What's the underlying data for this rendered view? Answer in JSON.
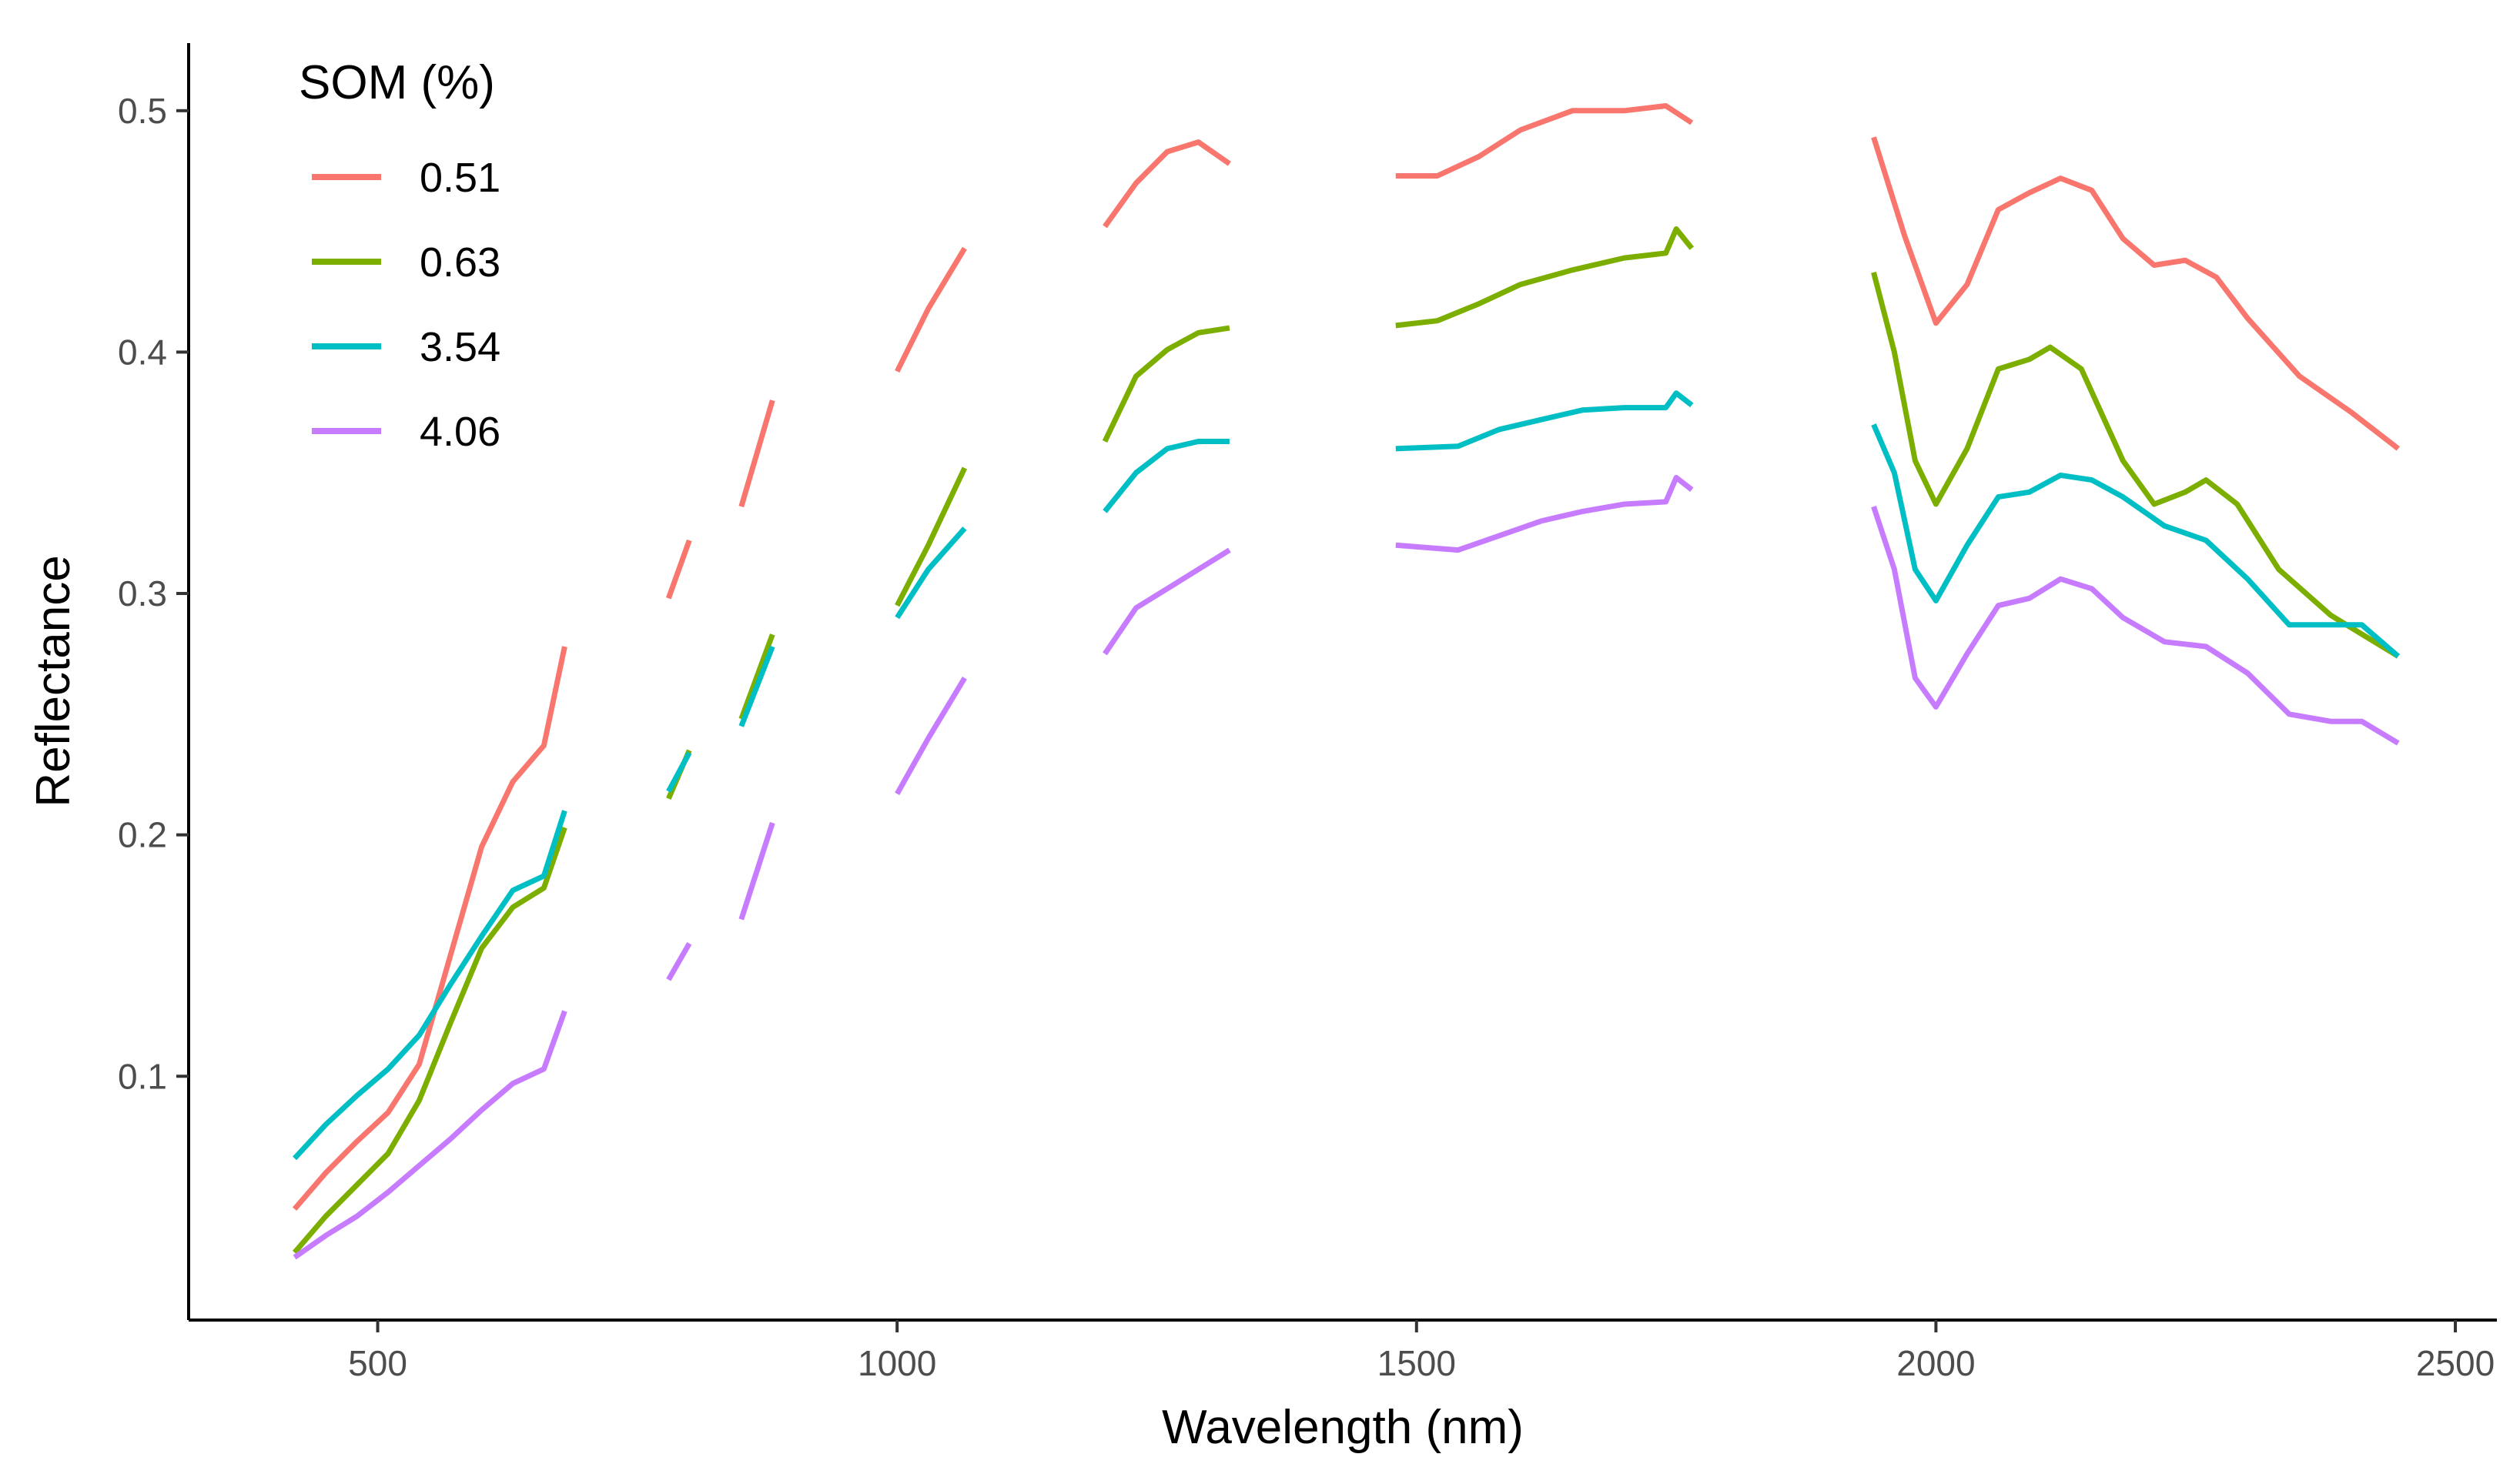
{
  "chart_data": {
    "type": "line",
    "title": "",
    "xlabel": "Wavelength (nm)",
    "ylabel": "Reflectance",
    "xlim": [
      318,
      2540
    ],
    "ylim": [
      -0.001,
      0.528
    ],
    "xticks": [
      500,
      1000,
      1500,
      2000,
      2500
    ],
    "xtick_labels": [
      "500",
      "1000",
      "1500",
      "2000",
      "2500"
    ],
    "yticks": [
      0.1,
      0.2,
      0.3,
      0.4,
      0.5
    ],
    "ytick_labels": [
      "0.1",
      "0.2",
      "0.3",
      "0.4",
      "0.5"
    ],
    "grid": false,
    "legend": {
      "title": "SOM (%)",
      "position": "top-left"
    },
    "series": [
      {
        "name": "0.51",
        "color": "#F8766D",
        "segments": [
          [
            [
              420,
              0.045
            ],
            [
              450,
              0.06
            ],
            [
              480,
              0.073
            ],
            [
              510,
              0.085
            ],
            [
              540,
              0.105
            ],
            [
              570,
              0.15
            ],
            [
              600,
              0.195
            ],
            [
              630,
              0.222
            ],
            [
              660,
              0.237
            ],
            [
              680,
              0.278
            ]
          ],
          [
            [
              780,
              0.298
            ],
            [
              800,
              0.322
            ]
          ],
          [
            [
              850,
              0.336
            ],
            [
              880,
              0.38
            ]
          ],
          [
            [
              1000,
              0.392
            ],
            [
              1030,
              0.418
            ],
            [
              1065,
              0.443
            ]
          ],
          [
            [
              1200,
              0.452
            ],
            [
              1230,
              0.47
            ],
            [
              1260,
              0.483
            ],
            [
              1290,
              0.487
            ],
            [
              1320,
              0.478
            ]
          ],
          [
            [
              1480,
              0.473
            ],
            [
              1520,
              0.473
            ],
            [
              1560,
              0.481
            ],
            [
              1600,
              0.492
            ],
            [
              1650,
              0.5
            ],
            [
              1700,
              0.5
            ],
            [
              1740,
              0.502
            ],
            [
              1765,
              0.495
            ]
          ],
          [
            [
              1940,
              0.489
            ],
            [
              1970,
              0.448
            ],
            [
              2000,
              0.412
            ],
            [
              2030,
              0.428
            ],
            [
              2060,
              0.459
            ],
            [
              2090,
              0.466
            ],
            [
              2120,
              0.472
            ],
            [
              2150,
              0.467
            ],
            [
              2180,
              0.447
            ],
            [
              2210,
              0.436
            ],
            [
              2240,
              0.438
            ],
            [
              2270,
              0.431
            ],
            [
              2300,
              0.414
            ],
            [
              2350,
              0.39
            ],
            [
              2400,
              0.375
            ],
            [
              2445,
              0.36
            ]
          ]
        ]
      },
      {
        "name": "0.63",
        "color": "#7CAE00",
        "segments": [
          [
            [
              420,
              0.027
            ],
            [
              450,
              0.042
            ],
            [
              480,
              0.055
            ],
            [
              510,
              0.068
            ],
            [
              540,
              0.09
            ],
            [
              570,
              0.122
            ],
            [
              600,
              0.153
            ],
            [
              630,
              0.17
            ],
            [
              660,
              0.178
            ],
            [
              680,
              0.203
            ]
          ],
          [
            [
              780,
              0.215
            ],
            [
              800,
              0.235
            ]
          ],
          [
            [
              850,
              0.248
            ],
            [
              880,
              0.283
            ]
          ],
          [
            [
              1000,
              0.295
            ],
            [
              1030,
              0.32
            ],
            [
              1065,
              0.352
            ]
          ],
          [
            [
              1200,
              0.363
            ],
            [
              1230,
              0.39
            ],
            [
              1260,
              0.401
            ],
            [
              1290,
              0.408
            ],
            [
              1320,
              0.41
            ]
          ],
          [
            [
              1480,
              0.411
            ],
            [
              1520,
              0.413
            ],
            [
              1560,
              0.42
            ],
            [
              1600,
              0.428
            ],
            [
              1650,
              0.434
            ],
            [
              1700,
              0.439
            ],
            [
              1740,
              0.441
            ],
            [
              1750,
              0.451
            ],
            [
              1765,
              0.443
            ]
          ],
          [
            [
              1940,
              0.433
            ],
            [
              1960,
              0.4
            ],
            [
              1980,
              0.355
            ],
            [
              2000,
              0.337
            ],
            [
              2030,
              0.36
            ],
            [
              2060,
              0.393
            ],
            [
              2090,
              0.397
            ],
            [
              2110,
              0.402
            ],
            [
              2140,
              0.393
            ],
            [
              2180,
              0.355
            ],
            [
              2210,
              0.337
            ],
            [
              2240,
              0.342
            ],
            [
              2260,
              0.347
            ],
            [
              2290,
              0.337
            ],
            [
              2330,
              0.31
            ],
            [
              2380,
              0.291
            ],
            [
              2445,
              0.274
            ]
          ]
        ]
      },
      {
        "name": "3.54",
        "color": "#00BFC4",
        "segments": [
          [
            [
              420,
              0.066
            ],
            [
              450,
              0.08
            ],
            [
              480,
              0.092
            ],
            [
              510,
              0.103
            ],
            [
              540,
              0.117
            ],
            [
              570,
              0.138
            ],
            [
              600,
              0.158
            ],
            [
              630,
              0.177
            ],
            [
              660,
              0.183
            ],
            [
              680,
              0.21
            ]
          ],
          [
            [
              780,
              0.218
            ],
            [
              800,
              0.234
            ]
          ],
          [
            [
              850,
              0.245
            ],
            [
              880,
              0.278
            ]
          ],
          [
            [
              1000,
              0.29
            ],
            [
              1030,
              0.31
            ],
            [
              1065,
              0.327
            ]
          ],
          [
            [
              1200,
              0.334
            ],
            [
              1230,
              0.35
            ],
            [
              1260,
              0.36
            ],
            [
              1290,
              0.363
            ],
            [
              1320,
              0.363
            ]
          ],
          [
            [
              1480,
              0.36
            ],
            [
              1540,
              0.361
            ],
            [
              1580,
              0.368
            ],
            [
              1620,
              0.372
            ],
            [
              1660,
              0.376
            ],
            [
              1700,
              0.377
            ],
            [
              1740,
              0.377
            ],
            [
              1750,
              0.383
            ],
            [
              1765,
              0.378
            ]
          ],
          [
            [
              1940,
              0.37
            ],
            [
              1960,
              0.35
            ],
            [
              1980,
              0.31
            ],
            [
              2000,
              0.297
            ],
            [
              2030,
              0.32
            ],
            [
              2060,
              0.34
            ],
            [
              2090,
              0.342
            ],
            [
              2120,
              0.349
            ],
            [
              2150,
              0.347
            ],
            [
              2180,
              0.34
            ],
            [
              2220,
              0.328
            ],
            [
              2260,
              0.322
            ],
            [
              2300,
              0.306
            ],
            [
              2340,
              0.287
            ],
            [
              2380,
              0.287
            ],
            [
              2410,
              0.287
            ],
            [
              2445,
              0.274
            ]
          ]
        ]
      },
      {
        "name": "4.06",
        "color": "#C77CFF",
        "segments": [
          [
            [
              420,
              0.025
            ],
            [
              450,
              0.034
            ],
            [
              480,
              0.042
            ],
            [
              510,
              0.052
            ],
            [
              540,
              0.063
            ],
            [
              570,
              0.074
            ],
            [
              600,
              0.086
            ],
            [
              630,
              0.097
            ],
            [
              660,
              0.103
            ],
            [
              680,
              0.127
            ]
          ],
          [
            [
              780,
              0.14
            ],
            [
              800,
              0.155
            ]
          ],
          [
            [
              850,
              0.165
            ],
            [
              880,
              0.205
            ]
          ],
          [
            [
              1000,
              0.217
            ],
            [
              1030,
              0.24
            ],
            [
              1065,
              0.265
            ]
          ],
          [
            [
              1200,
              0.275
            ],
            [
              1230,
              0.294
            ],
            [
              1260,
              0.302
            ],
            [
              1290,
              0.31
            ],
            [
              1320,
              0.318
            ]
          ],
          [
            [
              1480,
              0.32
            ],
            [
              1540,
              0.318
            ],
            [
              1580,
              0.324
            ],
            [
              1620,
              0.33
            ],
            [
              1660,
              0.334
            ],
            [
              1700,
              0.337
            ],
            [
              1740,
              0.338
            ],
            [
              1750,
              0.348
            ],
            [
              1765,
              0.343
            ]
          ],
          [
            [
              1940,
              0.336
            ],
            [
              1960,
              0.31
            ],
            [
              1980,
              0.265
            ],
            [
              2000,
              0.253
            ],
            [
              2030,
              0.275
            ],
            [
              2060,
              0.295
            ],
            [
              2090,
              0.298
            ],
            [
              2120,
              0.306
            ],
            [
              2150,
              0.302
            ],
            [
              2180,
              0.29
            ],
            [
              2220,
              0.28
            ],
            [
              2260,
              0.278
            ],
            [
              2300,
              0.267
            ],
            [
              2340,
              0.25
            ],
            [
              2380,
              0.247
            ],
            [
              2410,
              0.247
            ],
            [
              2445,
              0.238
            ]
          ]
        ]
      }
    ]
  }
}
